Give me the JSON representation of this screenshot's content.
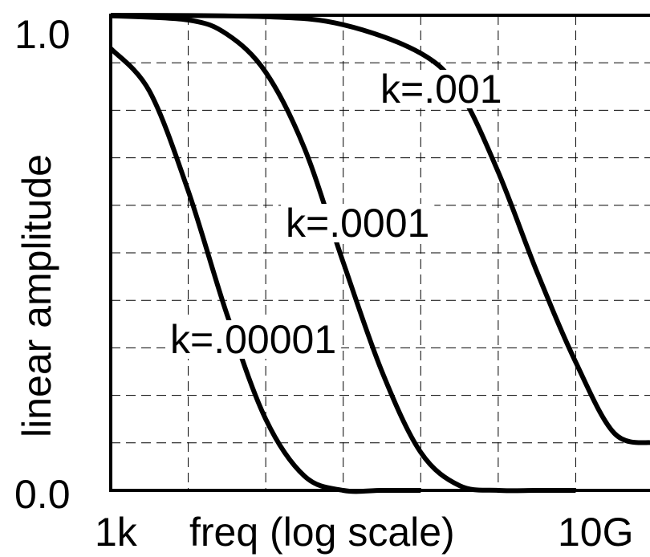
{
  "chart_data": {
    "type": "line",
    "title": "",
    "xlabel": "freq (log scale)",
    "ylabel": "linear amplitude",
    "x_scale": "log",
    "x_tick_labels": [
      "1k",
      "10G"
    ],
    "y_tick_labels": [
      "1.0",
      "0.0"
    ],
    "xlim": [
      1000,
      10000000000
    ],
    "ylim": [
      0,
      1
    ],
    "grid": true,
    "series": [
      {
        "name": "k=.00001",
        "x": [
          1000,
          3162,
          10000,
          31623,
          100000,
          316228,
          1000000,
          3162278,
          10000000
        ],
        "y": [
          0.93,
          0.84,
          0.63,
          0.37,
          0.15,
          0.03,
          0.0,
          0.0,
          0.0
        ]
      },
      {
        "name": "k=.0001",
        "x": [
          1000,
          10000,
          31623,
          100000,
          316228,
          1000000,
          3162278,
          10000000,
          31622777,
          100000000,
          316227766,
          1000000000
        ],
        "y": [
          0.999,
          0.99,
          0.96,
          0.88,
          0.72,
          0.48,
          0.25,
          0.08,
          0.01,
          0.0,
          0.0,
          0.0
        ]
      },
      {
        "name": "k=.001",
        "x": [
          1000,
          100000,
          1000000,
          10000000,
          31622777,
          100000000,
          316227766,
          1000000000,
          3162277660,
          10000000000
        ],
        "y": [
          1.0,
          0.997,
          0.98,
          0.92,
          0.84,
          0.67,
          0.46,
          0.27,
          0.12,
          0.1
        ]
      }
    ]
  }
}
